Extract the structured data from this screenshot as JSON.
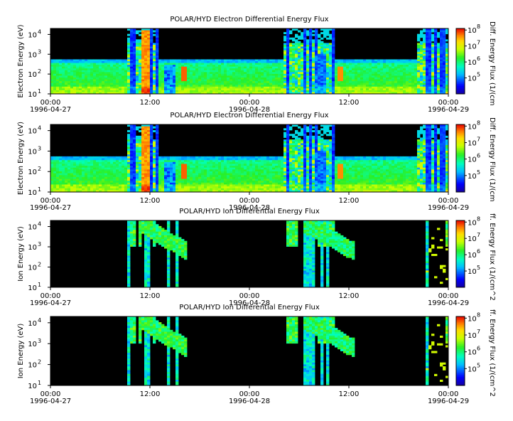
{
  "chart_data": [
    {
      "type": "heatmap",
      "title": "POLAR/HYD  Electron Differential Energy Flux",
      "ylabel": "Electron Energy (eV)",
      "yscale": "log",
      "ylim": [
        10,
        20000
      ],
      "xlim": [
        "1996-04-27 00:00",
        "1996-04-29 00:00"
      ],
      "colorbar": {
        "label": "Diff. Energy Flux (1/(cm",
        "scale": "log",
        "range": [
          10000,
          100000000
        ]
      },
      "spectrogram": "electron"
    },
    {
      "type": "heatmap",
      "title": "POLAR/HYD  Electron Differential Energy Flux",
      "ylabel": "Electron Energy (eV)",
      "yscale": "log",
      "ylim": [
        10,
        20000
      ],
      "xlim": [
        "1996-04-27 00:00",
        "1996-04-29 00:00"
      ],
      "colorbar": {
        "label": "Diff. Energy Flux (1/(cm",
        "scale": "log",
        "range": [
          10000,
          100000000
        ]
      },
      "spectrogram": "electron"
    },
    {
      "type": "heatmap",
      "title": "POLAR/HYD  Ion Differential Energy Flux",
      "ylabel": "Ion Energy (eV)",
      "yscale": "log",
      "ylim": [
        10,
        20000
      ],
      "xlim": [
        "1996-04-27 00:00",
        "1996-04-29 00:00"
      ],
      "colorbar": {
        "label": "ff. Energy Flux (1/(cm^2",
        "scale": "log",
        "range": [
          10000,
          100000000
        ]
      },
      "spectrogram": "ion"
    },
    {
      "type": "heatmap",
      "title": "POLAR/HYD  Ion Differential Energy Flux",
      "ylabel": "Ion Energy (eV)",
      "yscale": "log",
      "ylim": [
        10,
        20000
      ],
      "xlim": [
        "1996-04-27 00:00",
        "1996-04-29 00:00"
      ],
      "colorbar": {
        "label": "ff. Energy Flux (1/(cm^2",
        "scale": "log",
        "range": [
          10000,
          100000000
        ]
      },
      "spectrogram": "ion"
    }
  ],
  "axes": {
    "x_ticks": [
      {
        "time": "00:00",
        "date": "1996-04-27"
      },
      {
        "time": "12:00",
        "date": ""
      },
      {
        "time": "00:00",
        "date": "1996-04-28"
      },
      {
        "time": "12:00",
        "date": ""
      },
      {
        "time": "00:00",
        "date": "1996-04-29"
      }
    ],
    "y_tick_exponents": [
      "1",
      "2",
      "3",
      "4"
    ],
    "colorbar_tick_exponents": [
      "5",
      "6",
      "7",
      "8"
    ]
  }
}
